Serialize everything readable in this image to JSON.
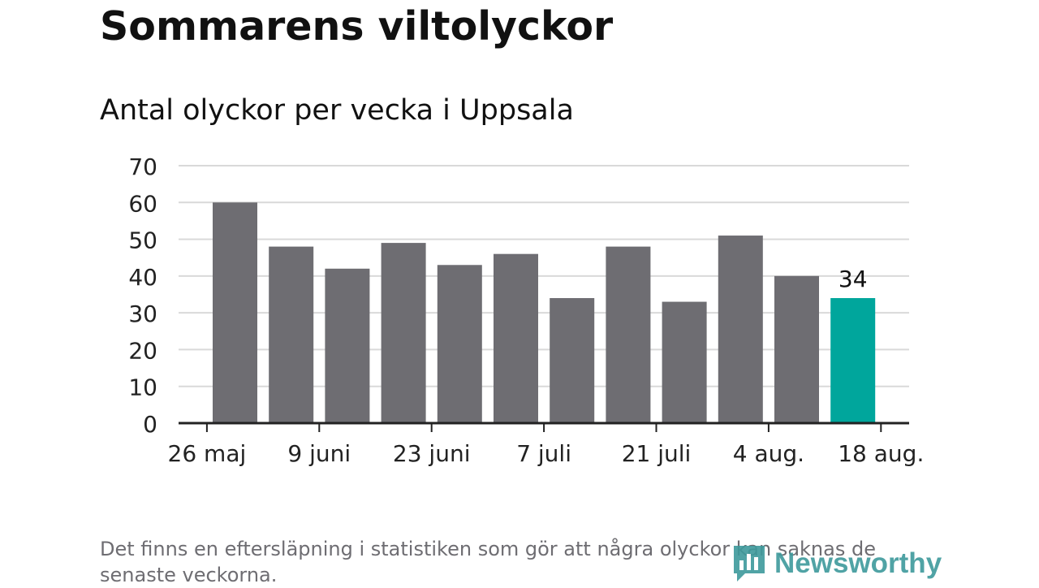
{
  "title": "Sommarens viltolyckor",
  "subtitle": "Antal olyckor per vecka i Uppsala",
  "footnote": "Det finns en eftersläpning i statistiken som gör att några olyckor kan saknas de senaste veckorna.",
  "logo_text": "Newsworthy",
  "colors": {
    "bar": "#6e6d72",
    "highlight": "#00a69c",
    "grid": "#d9d9d9",
    "axis": "#222222",
    "logo": "#3e9a9c"
  },
  "chart_data": {
    "type": "bar",
    "title": "Sommarens viltolyckor",
    "subtitle": "Antal olyckor per vecka i Uppsala",
    "xlabel": "",
    "ylabel": "",
    "values": [
      60,
      48,
      42,
      49,
      43,
      46,
      34,
      48,
      33,
      51,
      40,
      34
    ],
    "highlight_index": 11,
    "data_labels": [
      {
        "index": 11,
        "text": "34"
      }
    ],
    "x_tick_labels": [
      "26 maj",
      "9 juni",
      "23 juni",
      "7 juli",
      "21 juli",
      "4 aug.",
      "18 aug."
    ],
    "y_ticks": [
      0,
      10,
      20,
      30,
      40,
      50,
      60,
      70
    ],
    "ylim": [
      0,
      70
    ],
    "grid": true
  }
}
